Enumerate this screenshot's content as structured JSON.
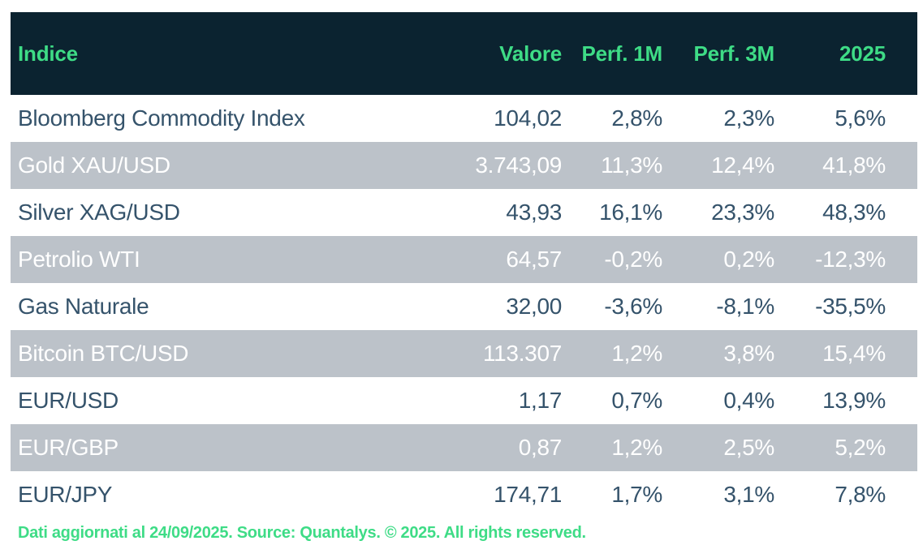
{
  "chart_data": {
    "type": "table",
    "columns": [
      "Indice",
      "Valore",
      "Perf. 1M",
      "Perf. 3M",
      "2025"
    ],
    "rows": [
      [
        "Bloomberg Commodity Index",
        "104,02",
        "2,8%",
        "2,3%",
        "5,6%"
      ],
      [
        "Gold XAU/USD",
        "3.743,09",
        "11,3%",
        "12,4%",
        "41,8%"
      ],
      [
        "Silver XAG/USD",
        "43,93",
        "16,1%",
        "23,3%",
        "48,3%"
      ],
      [
        "Petrolio WTI",
        "64,57",
        "-0,2%",
        "0,2%",
        "-12,3%"
      ],
      [
        "Gas Naturale",
        "32,00",
        "-3,6%",
        "-8,1%",
        "-35,5%"
      ],
      [
        "Bitcoin BTC/USD",
        "113.307",
        "1,2%",
        "3,8%",
        "15,4%"
      ],
      [
        "EUR/USD",
        "1,17",
        "0,7%",
        "0,4%",
        "13,9%"
      ],
      [
        "EUR/GBP",
        "0,87",
        "1,2%",
        "2,5%",
        "5,2%"
      ],
      [
        "EUR/JPY",
        "174,71",
        "1,7%",
        "3,1%",
        "7,8%"
      ]
    ],
    "footer_note": "Dati aggiornati al 24/09/2025. Source: Quantalys. © 2025. All rights reserved.",
    "legend_position": "none",
    "grid": false
  },
  "colors": {
    "header_background": "#0b2330",
    "accent_green": "#3edc86",
    "alt_row_background": "#bcc2c9",
    "row_text": "#35536b",
    "alt_row_text": "#ffffff",
    "page_background": "#ffffff"
  }
}
